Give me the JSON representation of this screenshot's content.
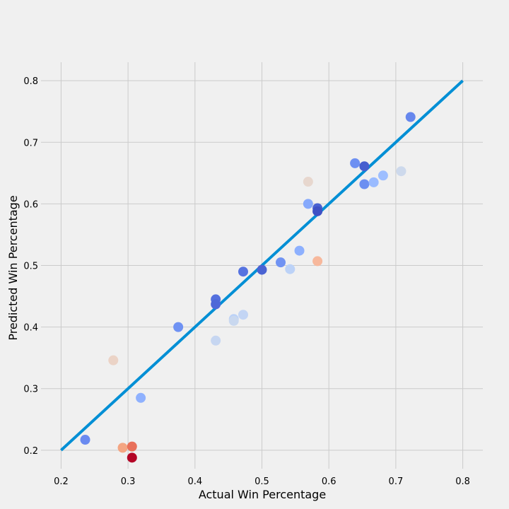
{
  "chart_data": {
    "type": "scatter",
    "title": "",
    "xlabel": "Actual Win Percentage",
    "ylabel": "Predicted Win Percentage",
    "xlim": [
      0.17,
      0.83
    ],
    "ylim": [
      0.17,
      0.83
    ],
    "xticks": [
      "0.2",
      "0.3",
      "0.4",
      "0.5",
      "0.6",
      "0.7",
      "0.8"
    ],
    "yticks": [
      "0.2",
      "0.3",
      "0.4",
      "0.5",
      "0.6",
      "0.7",
      "0.8"
    ],
    "grid": true,
    "legend": "none",
    "reference_line": {
      "from": [
        0.2,
        0.2
      ],
      "to": [
        0.8,
        0.8
      ],
      "color": "#008fd5"
    },
    "points": [
      {
        "x": 0.236,
        "y": 0.217,
        "color": "#6a8af0"
      },
      {
        "x": 0.278,
        "y": 0.346,
        "color": "#ebd3c6"
      },
      {
        "x": 0.292,
        "y": 0.204,
        "color": "#f4a582"
      },
      {
        "x": 0.306,
        "y": 0.206,
        "color": "#e8705a"
      },
      {
        "x": 0.306,
        "y": 0.188,
        "color": "#b40426"
      },
      {
        "x": 0.319,
        "y": 0.285,
        "color": "#8fb1fe"
      },
      {
        "x": 0.375,
        "y": 0.4,
        "color": "#6f92f3"
      },
      {
        "x": 0.431,
        "y": 0.445,
        "color": "#5470de"
      },
      {
        "x": 0.431,
        "y": 0.437,
        "color": "#4e68d8"
      },
      {
        "x": 0.431,
        "y": 0.378,
        "color": "#c6d6f1"
      },
      {
        "x": 0.458,
        "y": 0.413,
        "color": "#bcd2f7"
      },
      {
        "x": 0.458,
        "y": 0.41,
        "color": "#c9d8ef"
      },
      {
        "x": 0.472,
        "y": 0.42,
        "color": "#c3d5f4"
      },
      {
        "x": 0.472,
        "y": 0.49,
        "color": "#5673e0"
      },
      {
        "x": 0.5,
        "y": 0.493,
        "color": "#4a63d3"
      },
      {
        "x": 0.528,
        "y": 0.505,
        "color": "#7093f3"
      },
      {
        "x": 0.542,
        "y": 0.494,
        "color": "#bcd2f7"
      },
      {
        "x": 0.556,
        "y": 0.524,
        "color": "#8db0fe"
      },
      {
        "x": 0.569,
        "y": 0.6,
        "color": "#86a9fc"
      },
      {
        "x": 0.569,
        "y": 0.636,
        "color": "#e7d7ce"
      },
      {
        "x": 0.583,
        "y": 0.593,
        "color": "#4961d2"
      },
      {
        "x": 0.583,
        "y": 0.588,
        "color": "#3e51c5"
      },
      {
        "x": 0.583,
        "y": 0.507,
        "color": "#f7b89c"
      },
      {
        "x": 0.639,
        "y": 0.666,
        "color": "#6e90f2"
      },
      {
        "x": 0.653,
        "y": 0.661,
        "color": "#465ecf"
      },
      {
        "x": 0.653,
        "y": 0.632,
        "color": "#6c8ff1"
      },
      {
        "x": 0.667,
        "y": 0.635,
        "color": "#9abbff"
      },
      {
        "x": 0.681,
        "y": 0.646,
        "color": "#9ebeff"
      },
      {
        "x": 0.708,
        "y": 0.653,
        "color": "#cdd9ec"
      },
      {
        "x": 0.722,
        "y": 0.741,
        "color": "#6687ed"
      }
    ]
  }
}
